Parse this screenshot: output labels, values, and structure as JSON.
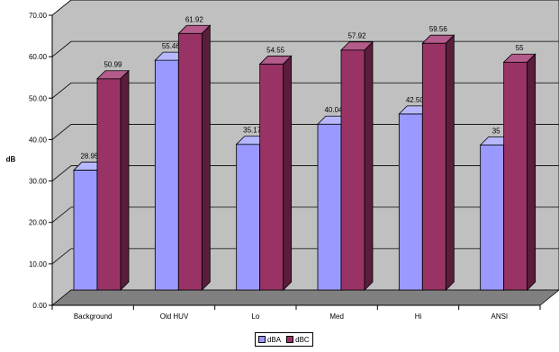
{
  "chart_data": {
    "type": "bar",
    "title": "",
    "xlabel": "",
    "ylabel": "dB",
    "ylim": [
      0,
      70
    ],
    "yticks": [
      "0.00",
      "10.00",
      "20.00",
      "30.00",
      "40.00",
      "50.00",
      "60.00",
      "70.00"
    ],
    "categories": [
      "Background",
      "Old HUV",
      "Lo",
      "Med",
      "Hi",
      "ANSI"
    ],
    "series": [
      {
        "name": "dBA",
        "values": [
          28.95,
          55.46,
          35.17,
          40.04,
          42.5,
          35
        ],
        "labels": [
          "28.95",
          "55.46",
          "35.17",
          "40.04",
          "42.50",
          "35"
        ],
        "color_front": "#9999ff",
        "color_top": "#b7b7ff",
        "color_side": "#5c5cc0"
      },
      {
        "name": "dBC",
        "values": [
          50.99,
          61.92,
          54.55,
          57.92,
          59.56,
          55
        ],
        "labels": [
          "50.99",
          "61.92",
          "54.55",
          "57.92",
          "59.56",
          "55"
        ],
        "color_front": "#993366",
        "color_top": "#b35b8a",
        "color_side": "#5a1d3c"
      }
    ],
    "grid": true,
    "style": "3d-clustered-column",
    "wall_color": "#c0c0c0",
    "floor_color": "#808080",
    "legend_position": "bottom"
  }
}
